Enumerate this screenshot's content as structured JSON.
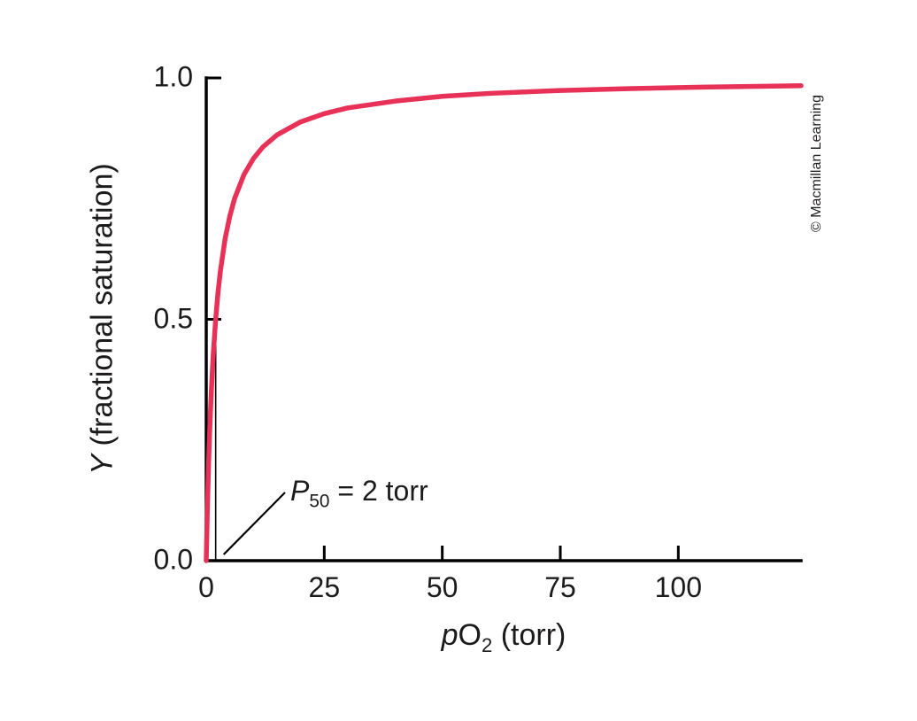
{
  "figure": {
    "credit": "© Macmillan Learning",
    "background": "#ffffff"
  },
  "chart_data": {
    "type": "line",
    "title": "",
    "xlabel": "pO2 (torr)",
    "ylabel": "Y (fractional saturation)",
    "xlabel_parts": {
      "italic": "p",
      "base": "O",
      "sub": "2",
      "rest": " (torr)"
    },
    "ylabel_parts": {
      "italic": "Y",
      "rest": " (fractional saturation)"
    },
    "xlim": [
      0,
      126
    ],
    "ylim": [
      0,
      1.0
    ],
    "x_ticks": [
      0,
      25,
      50,
      75,
      100
    ],
    "x_tick_labels": [
      "0",
      "25",
      "50",
      "75",
      "100"
    ],
    "y_ticks": [
      0.0,
      0.5,
      1.0
    ],
    "y_tick_labels": [
      "0.0",
      "0.5",
      "1.0"
    ],
    "grid": false,
    "legend": "none",
    "line_color": "#e73157",
    "axis_color": "#000000",
    "annotation_text": "P50 = 2 torr",
    "annotation": {
      "italic": "P",
      "sub": "50",
      "rest": " = 2 torr"
    },
    "p50": {
      "x": 2,
      "y_at_p50": 0.5
    },
    "series": [
      {
        "name": "fractional saturation curve",
        "points": [
          [
            0,
            0
          ],
          [
            0.25,
            0.111
          ],
          [
            0.5,
            0.2
          ],
          [
            0.75,
            0.273
          ],
          [
            1,
            0.333
          ],
          [
            1.25,
            0.385
          ],
          [
            1.5,
            0.429
          ],
          [
            2,
            0.5
          ],
          [
            2.5,
            0.556
          ],
          [
            3,
            0.6
          ],
          [
            4,
            0.667
          ],
          [
            5,
            0.714
          ],
          [
            6,
            0.75
          ],
          [
            8,
            0.8
          ],
          [
            10,
            0.833
          ],
          [
            12,
            0.857
          ],
          [
            15,
            0.882
          ],
          [
            20,
            0.909
          ],
          [
            25,
            0.926
          ],
          [
            30,
            0.938
          ],
          [
            40,
            0.952
          ],
          [
            50,
            0.962
          ],
          [
            60,
            0.968
          ],
          [
            75,
            0.974
          ],
          [
            90,
            0.978
          ],
          [
            105,
            0.981
          ],
          [
            126,
            0.984
          ]
        ]
      }
    ]
  }
}
